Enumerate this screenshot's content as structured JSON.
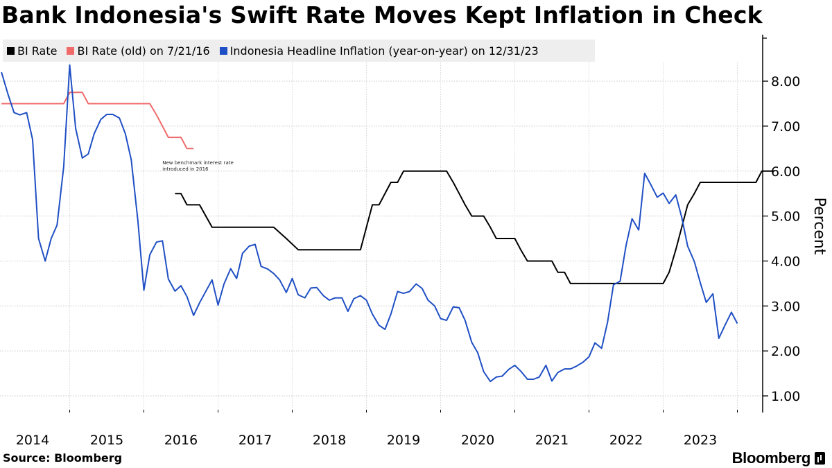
{
  "title": "Bank Indonesia's Swift Rate Moves Kept Inflation in Check",
  "source": "Source:  Bloomberg",
  "brand": "Bloomberg",
  "chart_data": {
    "type": "line",
    "title": "Bank Indonesia's Swift Rate Moves Kept Inflation in Check",
    "ylabel": "Percent",
    "xlabel": "",
    "xlim": [
      2013.6,
      2023.95
    ],
    "ylim": [
      0.6,
      9.0
    ],
    "y_ticks": [
      1.0,
      2.0,
      3.0,
      4.0,
      5.0,
      6.0,
      7.0,
      8.0
    ],
    "y_tick_labels": [
      "1.00",
      "2.00",
      "3.00",
      "4.00",
      "5.00",
      "6.00",
      "7.00",
      "8.00"
    ],
    "x_ticks": [
      2014,
      2015,
      2016,
      2017,
      2018,
      2019,
      2020,
      2021,
      2022,
      2023
    ],
    "x_tick_labels": [
      "2014",
      "2015",
      "2016",
      "2017",
      "2018",
      "2019",
      "2020",
      "2021",
      "2022",
      "2023"
    ],
    "grid": true,
    "legend_position": "top-left",
    "annotation": {
      "text": [
        "New benchmark interest rate",
        "introduced in 2016"
      ],
      "x": 2015.75,
      "y": 6.15
    },
    "series": [
      {
        "name": "BI Rate",
        "color": "#000000",
        "step": true,
        "points": [
          [
            2015.92,
            5.5
          ],
          [
            2016.0,
            5.5
          ],
          [
            2016.08,
            5.25
          ],
          [
            2016.25,
            5.25
          ],
          [
            2016.42,
            4.75
          ],
          [
            2016.83,
            4.75
          ],
          [
            2017.08,
            4.75
          ],
          [
            2017.25,
            4.75
          ],
          [
            2017.42,
            4.5
          ],
          [
            2017.58,
            4.25
          ],
          [
            2018.0,
            4.25
          ],
          [
            2018.42,
            4.25
          ],
          [
            2018.5,
            4.75
          ],
          [
            2018.58,
            5.25
          ],
          [
            2018.67,
            5.25
          ],
          [
            2018.83,
            5.75
          ],
          [
            2018.92,
            5.75
          ],
          [
            2019.0,
            6.0
          ],
          [
            2019.5,
            6.0
          ],
          [
            2019.58,
            6.0
          ],
          [
            2019.67,
            5.75
          ],
          [
            2019.75,
            5.5
          ],
          [
            2019.83,
            5.25
          ],
          [
            2019.92,
            5.0
          ],
          [
            2020.0,
            5.0
          ],
          [
            2020.08,
            5.0
          ],
          [
            2020.17,
            4.75
          ],
          [
            2020.25,
            4.5
          ],
          [
            2020.5,
            4.5
          ],
          [
            2020.58,
            4.25
          ],
          [
            2020.67,
            4.0
          ],
          [
            2021.0,
            4.0
          ],
          [
            2021.08,
            3.75
          ],
          [
            2021.17,
            3.75
          ],
          [
            2021.25,
            3.5
          ],
          [
            2021.58,
            3.5
          ],
          [
            2022.0,
            3.5
          ],
          [
            2022.5,
            3.5
          ],
          [
            2022.58,
            3.75
          ],
          [
            2022.67,
            4.25
          ],
          [
            2022.75,
            4.75
          ],
          [
            2022.83,
            5.25
          ],
          [
            2022.92,
            5.5
          ],
          [
            2023.0,
            5.75
          ],
          [
            2023.5,
            5.75
          ],
          [
            2023.75,
            5.75
          ],
          [
            2023.83,
            6.0
          ],
          [
            2023.92,
            6.0
          ],
          [
            2024.0,
            6.0
          ]
        ]
      },
      {
        "name": "BI Rate (old) on 7/21/16",
        "color": "#f06a6a",
        "step": true,
        "points": [
          [
            2013.58,
            7.5
          ],
          [
            2014.0,
            7.5
          ],
          [
            2014.17,
            7.5
          ],
          [
            2014.42,
            7.5
          ],
          [
            2014.5,
            7.75
          ],
          [
            2014.67,
            7.75
          ],
          [
            2014.75,
            7.5
          ],
          [
            2015.0,
            7.5
          ],
          [
            2015.42,
            7.5
          ],
          [
            2015.5,
            7.5
          ],
          [
            2015.58,
            7.5
          ],
          [
            2015.67,
            7.25
          ],
          [
            2015.75,
            7.0
          ],
          [
            2015.83,
            6.75
          ],
          [
            2016.0,
            6.75
          ],
          [
            2016.08,
            6.5
          ],
          [
            2016.17,
            6.5
          ]
        ]
      },
      {
        "name": "Indonesia Headline Inflation (year-on-year) on 12/31/23",
        "color": "#1f4fc4",
        "step": false,
        "points": [
          [
            2013.58,
            8.2
          ],
          [
            2013.67,
            7.7
          ],
          [
            2013.75,
            7.3
          ],
          [
            2013.83,
            7.25
          ],
          [
            2013.92,
            7.3
          ],
          [
            2014.0,
            6.7
          ],
          [
            2014.08,
            4.5
          ],
          [
            2014.17,
            4.0
          ],
          [
            2014.25,
            4.5
          ],
          [
            2014.33,
            4.8
          ],
          [
            2014.42,
            6.1
          ],
          [
            2014.5,
            8.36
          ],
          [
            2014.58,
            6.95
          ],
          [
            2014.67,
            6.29
          ],
          [
            2014.75,
            6.38
          ],
          [
            2014.83,
            6.83
          ],
          [
            2014.92,
            7.15
          ],
          [
            2015.0,
            7.26
          ],
          [
            2015.08,
            7.26
          ],
          [
            2015.17,
            7.18
          ],
          [
            2015.25,
            6.83
          ],
          [
            2015.33,
            6.25
          ],
          [
            2015.42,
            4.89
          ],
          [
            2015.5,
            3.35
          ],
          [
            2015.58,
            4.14
          ],
          [
            2015.67,
            4.42
          ],
          [
            2015.75,
            4.45
          ],
          [
            2015.83,
            3.6
          ],
          [
            2015.92,
            3.33
          ],
          [
            2016.0,
            3.45
          ],
          [
            2016.08,
            3.21
          ],
          [
            2016.17,
            2.79
          ],
          [
            2016.25,
            3.07
          ],
          [
            2016.33,
            3.31
          ],
          [
            2016.42,
            3.58
          ],
          [
            2016.5,
            3.02
          ],
          [
            2016.58,
            3.49
          ],
          [
            2016.67,
            3.83
          ],
          [
            2016.75,
            3.61
          ],
          [
            2016.83,
            4.17
          ],
          [
            2016.92,
            4.33
          ],
          [
            2017.0,
            4.37
          ],
          [
            2017.08,
            3.88
          ],
          [
            2017.17,
            3.82
          ],
          [
            2017.25,
            3.72
          ],
          [
            2017.33,
            3.58
          ],
          [
            2017.42,
            3.3
          ],
          [
            2017.5,
            3.61
          ],
          [
            2017.58,
            3.25
          ],
          [
            2017.67,
            3.18
          ],
          [
            2017.75,
            3.4
          ],
          [
            2017.83,
            3.41
          ],
          [
            2017.92,
            3.23
          ],
          [
            2018.0,
            3.13
          ],
          [
            2018.08,
            3.18
          ],
          [
            2018.17,
            3.18
          ],
          [
            2018.25,
            2.88
          ],
          [
            2018.33,
            3.16
          ],
          [
            2018.42,
            3.23
          ],
          [
            2018.5,
            3.13
          ],
          [
            2018.58,
            2.82
          ],
          [
            2018.67,
            2.57
          ],
          [
            2018.75,
            2.48
          ],
          [
            2018.83,
            2.82
          ],
          [
            2018.92,
            3.32
          ],
          [
            2019.0,
            3.28
          ],
          [
            2019.08,
            3.32
          ],
          [
            2019.17,
            3.49
          ],
          [
            2019.25,
            3.39
          ],
          [
            2019.33,
            3.13
          ],
          [
            2019.42,
            3.0
          ],
          [
            2019.5,
            2.72
          ],
          [
            2019.58,
            2.68
          ],
          [
            2019.67,
            2.98
          ],
          [
            2019.75,
            2.96
          ],
          [
            2019.83,
            2.68
          ],
          [
            2019.92,
            2.19
          ],
          [
            2020.0,
            1.96
          ],
          [
            2020.08,
            1.54
          ],
          [
            2020.17,
            1.32
          ],
          [
            2020.25,
            1.42
          ],
          [
            2020.33,
            1.44
          ],
          [
            2020.42,
            1.59
          ],
          [
            2020.5,
            1.68
          ],
          [
            2020.58,
            1.55
          ],
          [
            2020.67,
            1.37
          ],
          [
            2020.75,
            1.37
          ],
          [
            2020.83,
            1.42
          ],
          [
            2020.92,
            1.68
          ],
          [
            2021.0,
            1.33
          ],
          [
            2021.08,
            1.52
          ],
          [
            2021.17,
            1.6
          ],
          [
            2021.25,
            1.6
          ],
          [
            2021.33,
            1.66
          ],
          [
            2021.42,
            1.75
          ],
          [
            2021.5,
            1.87
          ],
          [
            2021.58,
            2.18
          ],
          [
            2021.67,
            2.06
          ],
          [
            2021.75,
            2.64
          ],
          [
            2021.83,
            3.47
          ],
          [
            2021.92,
            3.55
          ],
          [
            2022.0,
            4.35
          ],
          [
            2022.08,
            4.94
          ],
          [
            2022.17,
            4.69
          ],
          [
            2022.25,
            5.95
          ],
          [
            2022.33,
            5.71
          ],
          [
            2022.42,
            5.42
          ],
          [
            2022.5,
            5.51
          ],
          [
            2022.58,
            5.28
          ],
          [
            2022.67,
            5.47
          ],
          [
            2022.75,
            4.97
          ],
          [
            2022.83,
            4.33
          ],
          [
            2022.92,
            3.99
          ],
          [
            2023.0,
            3.52
          ],
          [
            2023.08,
            3.08
          ],
          [
            2023.17,
            3.27
          ],
          [
            2023.25,
            2.28
          ],
          [
            2023.33,
            2.56
          ],
          [
            2023.42,
            2.86
          ],
          [
            2023.5,
            2.61
          ]
        ]
      }
    ]
  }
}
